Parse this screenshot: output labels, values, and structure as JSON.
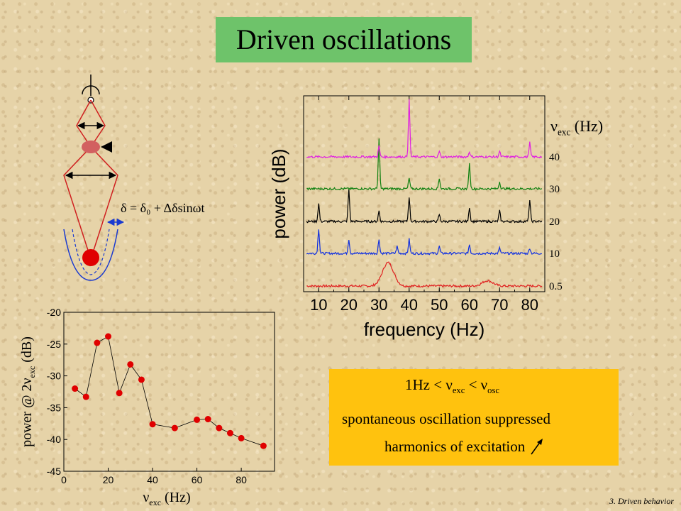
{
  "title": "Driven oscillations",
  "footer": "3. Driven behavior",
  "diagram": {
    "formula": "δ = δ₀ + Δδsinωt"
  },
  "info_box": {
    "line1": "1Hz < ν",
    "line1_sub1": "exc",
    "line1_mid": " < ν",
    "line1_sub2": "osc",
    "line2": "spontaneous oscillation suppressed",
    "line3": "harmonics of excitation"
  },
  "chart_data": [
    {
      "type": "line",
      "xlabel": "frequency (Hz)",
      "ylabel": "power (dB)",
      "xlim": [
        5,
        85
      ],
      "x_ticks": [
        10,
        20,
        30,
        40,
        50,
        60,
        70,
        80
      ],
      "series_axis_label": "ν",
      "series_axis_label_sub": "exc",
      "series_axis_unit": " (Hz)",
      "series": [
        {
          "name": "0.5",
          "color": "#e02020",
          "peaks": [
            [
              33,
              5
            ],
            [
              66,
              1.5
            ]
          ]
        },
        {
          "name": "10",
          "color": "#1030e0",
          "peaks": [
            [
              10,
              7
            ],
            [
              20,
              4
            ],
            [
              30,
              4
            ],
            [
              36,
              2
            ],
            [
              40,
              4
            ],
            [
              50,
              2
            ],
            [
              60,
              2.5
            ],
            [
              70,
              1.5
            ],
            [
              80,
              1.5
            ]
          ]
        },
        {
          "name": "20",
          "color": "#000000",
          "peaks": [
            [
              10,
              5
            ],
            [
              20,
              9
            ],
            [
              30,
              3
            ],
            [
              40,
              7
            ],
            [
              50,
              2
            ],
            [
              60,
              4
            ],
            [
              70,
              3
            ],
            [
              80,
              6
            ]
          ]
        },
        {
          "name": "30",
          "color": "#108010",
          "peaks": [
            [
              30,
              14
            ],
            [
              40,
              3
            ],
            [
              50,
              3
            ],
            [
              60,
              7
            ],
            [
              70,
              2
            ]
          ]
        },
        {
          "name": "40",
          "color": "#e020e0",
          "peaks": [
            [
              40,
              16
            ],
            [
              30,
              3
            ],
            [
              50,
              1.5
            ],
            [
              60,
              1.5
            ],
            [
              70,
              1.5
            ],
            [
              80,
              4
            ]
          ]
        }
      ]
    },
    {
      "type": "scatter",
      "xlabel": "ν",
      "xlabel_sub": "exc",
      "xlabel_unit": " (Hz)",
      "ylabel": "power @ 2ν",
      "ylabel_sub": "exc",
      "ylabel_unit": " (dB)",
      "xlim": [
        0,
        95
      ],
      "ylim": [
        -45,
        -20
      ],
      "x_ticks": [
        0,
        20,
        40,
        60,
        80
      ],
      "y_ticks": [
        -20,
        -25,
        -30,
        -35,
        -40,
        -45
      ],
      "color": "#e00000",
      "points": [
        [
          5,
          -32
        ],
        [
          10,
          -33.3
        ],
        [
          15,
          -24.8
        ],
        [
          20,
          -23.8
        ],
        [
          25,
          -32.7
        ],
        [
          30,
          -28.2
        ],
        [
          35,
          -30.6
        ],
        [
          40,
          -37.6
        ],
        [
          50,
          -38.2
        ],
        [
          60,
          -36.9
        ],
        [
          65,
          -36.8
        ],
        [
          70,
          -38.2
        ],
        [
          75,
          -39
        ],
        [
          80,
          -39.8
        ],
        [
          90,
          -41
        ]
      ]
    }
  ]
}
